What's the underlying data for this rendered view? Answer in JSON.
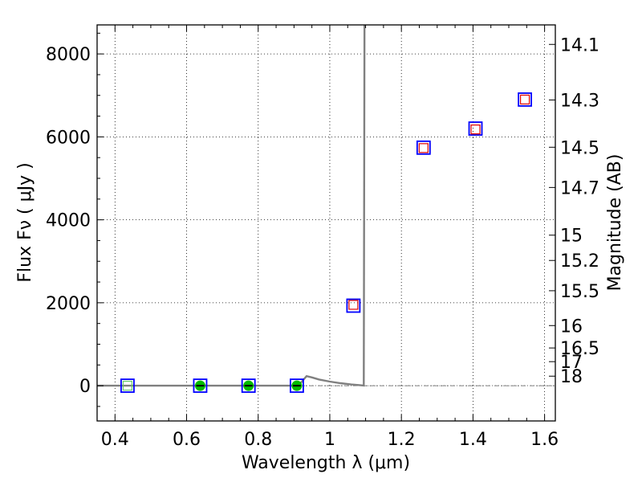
{
  "chart_data": {
    "type": "scatter",
    "title": "",
    "xlabel": "Wavelength  λ (μm)",
    "ylabel": "Flux  Fν  ( μJy )",
    "y2label": "Magnitude (AB)",
    "xlim": [
      0.35,
      1.63
    ],
    "ylim": [
      -850,
      8700
    ],
    "grid": true,
    "x_ticks": [
      0.4,
      0.6,
      0.8,
      1.0,
      1.2,
      1.4,
      1.6
    ],
    "x_tick_labels": [
      "0.4",
      "0.6",
      "0.8",
      "1",
      "1.2",
      "1.4",
      "1.6"
    ],
    "y_ticks": [
      0,
      2000,
      4000,
      6000,
      8000
    ],
    "y_tick_labels": [
      "0",
      "2000",
      "4000",
      "6000",
      "8000"
    ],
    "y2_ticks": [
      {
        "label": "14.1",
        "flux": 8230
      },
      {
        "label": "14.3",
        "flux": 6890
      },
      {
        "label": "14.5",
        "flux": 5750
      },
      {
        "label": "14.7",
        "flux": 4780
      },
      {
        "label": "15",
        "flux": 3630
      },
      {
        "label": "15.2",
        "flux": 3020
      },
      {
        "label": "15.5",
        "flux": 2290
      },
      {
        "label": "16",
        "flux": 1450
      },
      {
        "label": "16.5",
        "flux": 910
      },
      {
        "label": "17",
        "flux": 580
      },
      {
        "label": "18",
        "flux": 230
      }
    ],
    "series": [
      {
        "kind": "model-curve",
        "color": "#808080",
        "points": [
          [
            0.35,
            0
          ],
          [
            0.9,
            0
          ],
          [
            0.92,
            80
          ],
          [
            0.935,
            230
          ],
          [
            0.95,
            200
          ],
          [
            0.97,
            150
          ],
          [
            1.0,
            100
          ],
          [
            1.03,
            60
          ],
          [
            1.06,
            30
          ],
          [
            1.08,
            15
          ],
          [
            1.095,
            5
          ],
          [
            1.097,
            8700
          ]
        ]
      },
      {
        "kind": "observed",
        "marker": "blue-square",
        "color": "#0000ff",
        "points": [
          [
            0.435,
            0
          ],
          [
            0.638,
            0
          ],
          [
            0.773,
            0
          ],
          [
            0.908,
            0
          ],
          [
            1.066,
            1930
          ],
          [
            1.262,
            5740
          ],
          [
            1.407,
            6200
          ],
          [
            1.545,
            6900
          ]
        ]
      },
      {
        "kind": "model-photometry",
        "marker": "red-square",
        "color": "#dd0000",
        "points": [
          [
            1.066,
            1940
          ],
          [
            1.262,
            5720
          ],
          [
            1.407,
            6170
          ],
          [
            1.545,
            6890
          ]
        ]
      },
      {
        "kind": "model-photometry-low",
        "marker": "green-dot",
        "color": "#00bb00",
        "points": [
          [
            0.638,
            0
          ],
          [
            0.773,
            0
          ],
          [
            0.908,
            0
          ]
        ]
      },
      {
        "kind": "model-photometry-edge",
        "marker": "green-square",
        "color": "#66cc66",
        "points": [
          [
            0.435,
            0
          ]
        ]
      }
    ]
  }
}
